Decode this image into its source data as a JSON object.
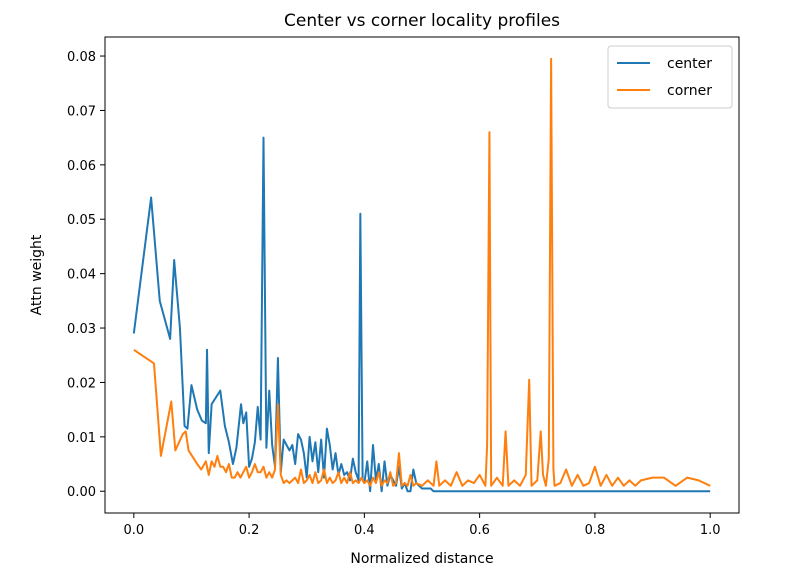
{
  "chart_data": {
    "type": "line",
    "title": "Center vs corner locality profiles",
    "xlabel": "Normalized distance",
    "ylabel": "Attn weight",
    "xlim": [
      -0.05,
      1.05
    ],
    "ylim": [
      -0.004,
      0.0835
    ],
    "xticks": [
      0.0,
      0.2,
      0.4,
      0.6,
      0.8,
      1.0
    ],
    "xtick_labels": [
      "0.0",
      "0.2",
      "0.4",
      "0.6",
      "0.8",
      "1.0"
    ],
    "yticks": [
      0.0,
      0.01,
      0.02,
      0.03,
      0.04,
      0.05,
      0.06,
      0.07,
      0.08
    ],
    "ytick_labels": [
      "0.00",
      "0.01",
      "0.02",
      "0.03",
      "0.04",
      "0.05",
      "0.06",
      "0.07",
      "0.08"
    ],
    "grid": false,
    "legend_position": "top-right",
    "series": [
      {
        "name": "center",
        "color": "#1f77b4",
        "points": [
          [
            0.0,
            0.029
          ],
          [
            0.03,
            0.054
          ],
          [
            0.045,
            0.035
          ],
          [
            0.063,
            0.028
          ],
          [
            0.07,
            0.0425
          ],
          [
            0.08,
            0.03
          ],
          [
            0.088,
            0.012
          ],
          [
            0.093,
            0.0115
          ],
          [
            0.1,
            0.0195
          ],
          [
            0.11,
            0.015
          ],
          [
            0.118,
            0.013
          ],
          [
            0.125,
            0.0125
          ],
          [
            0.127,
            0.026
          ],
          [
            0.13,
            0.007
          ],
          [
            0.135,
            0.016
          ],
          [
            0.15,
            0.0185
          ],
          [
            0.158,
            0.012
          ],
          [
            0.165,
            0.009
          ],
          [
            0.172,
            0.005
          ],
          [
            0.178,
            0.008
          ],
          [
            0.186,
            0.016
          ],
          [
            0.19,
            0.0125
          ],
          [
            0.195,
            0.0145
          ],
          [
            0.2,
            0.0045
          ],
          [
            0.205,
            0.006
          ],
          [
            0.21,
            0.009
          ],
          [
            0.215,
            0.0155
          ],
          [
            0.22,
            0.0095
          ],
          [
            0.225,
            0.065
          ],
          [
            0.23,
            0.008
          ],
          [
            0.235,
            0.0185
          ],
          [
            0.24,
            0.0085
          ],
          [
            0.245,
            0.0045
          ],
          [
            0.25,
            0.0245
          ],
          [
            0.255,
            0.0035
          ],
          [
            0.26,
            0.0095
          ],
          [
            0.265,
            0.0085
          ],
          [
            0.27,
            0.0075
          ],
          [
            0.275,
            0.0085
          ],
          [
            0.28,
            0.005
          ],
          [
            0.285,
            0.0105
          ],
          [
            0.29,
            0.0095
          ],
          [
            0.295,
            0.007
          ],
          [
            0.3,
            0.0025
          ],
          [
            0.305,
            0.01
          ],
          [
            0.31,
            0.0055
          ],
          [
            0.315,
            0.009
          ],
          [
            0.32,
            0.0035
          ],
          [
            0.325,
            0.0095
          ],
          [
            0.33,
            0.0025
          ],
          [
            0.335,
            0.0115
          ],
          [
            0.34,
            0.0085
          ],
          [
            0.345,
            0.004
          ],
          [
            0.35,
            0.007
          ],
          [
            0.355,
            0.003
          ],
          [
            0.36,
            0.005
          ],
          [
            0.365,
            0.003
          ],
          [
            0.37,
            0.0035
          ],
          [
            0.375,
            0.002
          ],
          [
            0.38,
            0.006
          ],
          [
            0.385,
            0.0035
          ],
          [
            0.39,
            0.002
          ],
          [
            0.393,
            0.051
          ],
          [
            0.397,
            0.002
          ],
          [
            0.4,
            0.0015
          ],
          [
            0.405,
            0.0055
          ],
          [
            0.41,
            0.0
          ],
          [
            0.415,
            0.0085
          ],
          [
            0.42,
            0.002
          ],
          [
            0.425,
            0.005
          ],
          [
            0.43,
            0.0
          ],
          [
            0.435,
            0.0055
          ],
          [
            0.44,
            0.001
          ],
          [
            0.445,
            0.003
          ],
          [
            0.45,
            0.002
          ],
          [
            0.455,
            0.001
          ],
          [
            0.46,
            0.0045
          ],
          [
            0.465,
            0.0005
          ],
          [
            0.47,
            0.0015
          ],
          [
            0.475,
            0.0
          ],
          [
            0.48,
            0.0
          ],
          [
            0.485,
            0.004
          ],
          [
            0.49,
            0.0015
          ],
          [
            0.495,
            0.001
          ],
          [
            0.5,
            0.0005
          ],
          [
            0.505,
            0.0005
          ],
          [
            0.51,
            0.0005
          ],
          [
            0.515,
            0.0005
          ],
          [
            0.52,
            0.0
          ],
          [
            1.0,
            0.0
          ]
        ]
      },
      {
        "name": "corner",
        "color": "#ff7f0e",
        "points": [
          [
            0.0,
            0.026
          ],
          [
            0.035,
            0.0235
          ],
          [
            0.047,
            0.0065
          ],
          [
            0.065,
            0.0165
          ],
          [
            0.072,
            0.0075
          ],
          [
            0.085,
            0.0105
          ],
          [
            0.09,
            0.011
          ],
          [
            0.095,
            0.0075
          ],
          [
            0.11,
            0.005
          ],
          [
            0.117,
            0.004
          ],
          [
            0.125,
            0.0055
          ],
          [
            0.13,
            0.003
          ],
          [
            0.135,
            0.0055
          ],
          [
            0.14,
            0.0045
          ],
          [
            0.145,
            0.0065
          ],
          [
            0.15,
            0.0045
          ],
          [
            0.155,
            0.0045
          ],
          [
            0.16,
            0.0035
          ],
          [
            0.165,
            0.005
          ],
          [
            0.17,
            0.0025
          ],
          [
            0.175,
            0.0025
          ],
          [
            0.18,
            0.0035
          ],
          [
            0.185,
            0.0025
          ],
          [
            0.19,
            0.0035
          ],
          [
            0.195,
            0.0045
          ],
          [
            0.2,
            0.0025
          ],
          [
            0.205,
            0.0035
          ],
          [
            0.21,
            0.005
          ],
          [
            0.215,
            0.0035
          ],
          [
            0.22,
            0.0035
          ],
          [
            0.225,
            0.0045
          ],
          [
            0.23,
            0.0025
          ],
          [
            0.235,
            0.0035
          ],
          [
            0.24,
            0.0025
          ],
          [
            0.245,
            0.004
          ],
          [
            0.25,
            0.016
          ],
          [
            0.255,
            0.003
          ],
          [
            0.26,
            0.0015
          ],
          [
            0.265,
            0.002
          ],
          [
            0.27,
            0.0015
          ],
          [
            0.275,
            0.002
          ],
          [
            0.28,
            0.0025
          ],
          [
            0.285,
            0.0015
          ],
          [
            0.29,
            0.004
          ],
          [
            0.295,
            0.0015
          ],
          [
            0.3,
            0.002
          ],
          [
            0.305,
            0.003
          ],
          [
            0.31,
            0.0015
          ],
          [
            0.315,
            0.0035
          ],
          [
            0.32,
            0.0015
          ],
          [
            0.325,
            0.002
          ],
          [
            0.33,
            0.004
          ],
          [
            0.335,
            0.0015
          ],
          [
            0.34,
            0.0025
          ],
          [
            0.345,
            0.0015
          ],
          [
            0.35,
            0.002
          ],
          [
            0.355,
            0.0035
          ],
          [
            0.36,
            0.0015
          ],
          [
            0.365,
            0.0025
          ],
          [
            0.37,
            0.0015
          ],
          [
            0.375,
            0.0035
          ],
          [
            0.38,
            0.0015
          ],
          [
            0.385,
            0.002
          ],
          [
            0.39,
            0.0015
          ],
          [
            0.395,
            0.0025
          ],
          [
            0.4,
            0.0015
          ],
          [
            0.405,
            0.002
          ],
          [
            0.41,
            0.001
          ],
          [
            0.415,
            0.0025
          ],
          [
            0.42,
            0.0015
          ],
          [
            0.425,
            0.0035
          ],
          [
            0.43,
            0.001
          ],
          [
            0.435,
            0.002
          ],
          [
            0.44,
            0.0015
          ],
          [
            0.445,
            0.0035
          ],
          [
            0.45,
            0.001
          ],
          [
            0.455,
            0.0015
          ],
          [
            0.46,
            0.007
          ],
          [
            0.465,
            0.001
          ],
          [
            0.47,
            0.0015
          ],
          [
            0.475,
            0.001
          ],
          [
            0.48,
            0.003
          ],
          [
            0.485,
            0.001
          ],
          [
            0.49,
            0.0015
          ],
          [
            0.5,
            0.001
          ],
          [
            0.51,
            0.002
          ],
          [
            0.52,
            0.001
          ],
          [
            0.525,
            0.0055
          ],
          [
            0.53,
            0.001
          ],
          [
            0.54,
            0.002
          ],
          [
            0.55,
            0.001
          ],
          [
            0.56,
            0.0035
          ],
          [
            0.57,
            0.001
          ],
          [
            0.58,
            0.002
          ],
          [
            0.59,
            0.0015
          ],
          [
            0.6,
            0.003
          ],
          [
            0.61,
            0.001
          ],
          [
            0.613,
            0.0085
          ],
          [
            0.617,
            0.066
          ],
          [
            0.62,
            0.001
          ],
          [
            0.63,
            0.0025
          ],
          [
            0.64,
            0.001
          ],
          [
            0.645,
            0.011
          ],
          [
            0.65,
            0.001
          ],
          [
            0.66,
            0.002
          ],
          [
            0.67,
            0.001
          ],
          [
            0.68,
            0.003
          ],
          [
            0.686,
            0.0205
          ],
          [
            0.69,
            0.001
          ],
          [
            0.7,
            0.002
          ],
          [
            0.706,
            0.011
          ],
          [
            0.71,
            0.003
          ],
          [
            0.715,
            0.001
          ],
          [
            0.72,
            0.006
          ],
          [
            0.724,
            0.0795
          ],
          [
            0.728,
            0.004
          ],
          [
            0.73,
            0.001
          ],
          [
            0.74,
            0.0015
          ],
          [
            0.75,
            0.004
          ],
          [
            0.76,
            0.001
          ],
          [
            0.77,
            0.003
          ],
          [
            0.78,
            0.001
          ],
          [
            0.79,
            0.0015
          ],
          [
            0.8,
            0.0045
          ],
          [
            0.81,
            0.001
          ],
          [
            0.82,
            0.003
          ],
          [
            0.83,
            0.001
          ],
          [
            0.84,
            0.0025
          ],
          [
            0.85,
            0.001
          ],
          [
            0.86,
            0.002
          ],
          [
            0.87,
            0.001
          ],
          [
            0.88,
            0.002
          ],
          [
            0.9,
            0.0025
          ],
          [
            0.92,
            0.0025
          ],
          [
            0.94,
            0.001
          ],
          [
            0.96,
            0.0025
          ],
          [
            0.98,
            0.002
          ],
          [
            1.0,
            0.001
          ]
        ]
      }
    ]
  }
}
